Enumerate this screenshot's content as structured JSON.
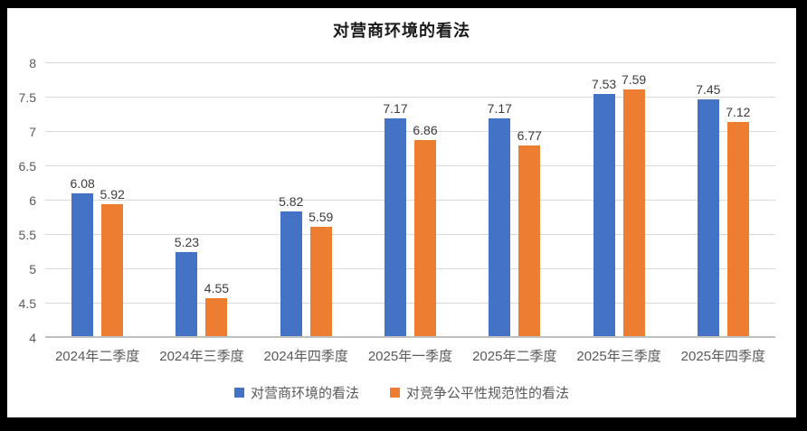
{
  "chart_data": {
    "type": "bar",
    "title": "对营商环境的看法",
    "categories": [
      "2024年二季度",
      "2024年三季度",
      "2024年四季度",
      "2025年一季度",
      "2025年二季度",
      "2025年三季度",
      "2025年四季度"
    ],
    "series": [
      {
        "name": "对营商环境的看法",
        "color": "#4472C4",
        "values": [
          6.08,
          5.23,
          5.82,
          7.17,
          7.17,
          7.53,
          7.45
        ]
      },
      {
        "name": "对竞争公平性规范性的看法",
        "color": "#ED7D31",
        "values": [
          5.92,
          4.55,
          5.59,
          6.86,
          6.77,
          7.59,
          7.12
        ]
      }
    ],
    "xlabel": "",
    "ylabel": "",
    "ylim": [
      4,
      8
    ],
    "ytick_step": 0.5,
    "yticks": [
      "8",
      "7.5",
      "7",
      "6.5",
      "6",
      "5.5",
      "5",
      "4.5",
      "4"
    ],
    "grid": true,
    "legend_position": "bottom",
    "data_label_decimals": 2,
    "frame_color": "#000000",
    "background_color": "#ffffff",
    "gridline_color": "#d9d9d9",
    "axis_line_color": "#bfbfbf",
    "text_color": "#595959"
  }
}
